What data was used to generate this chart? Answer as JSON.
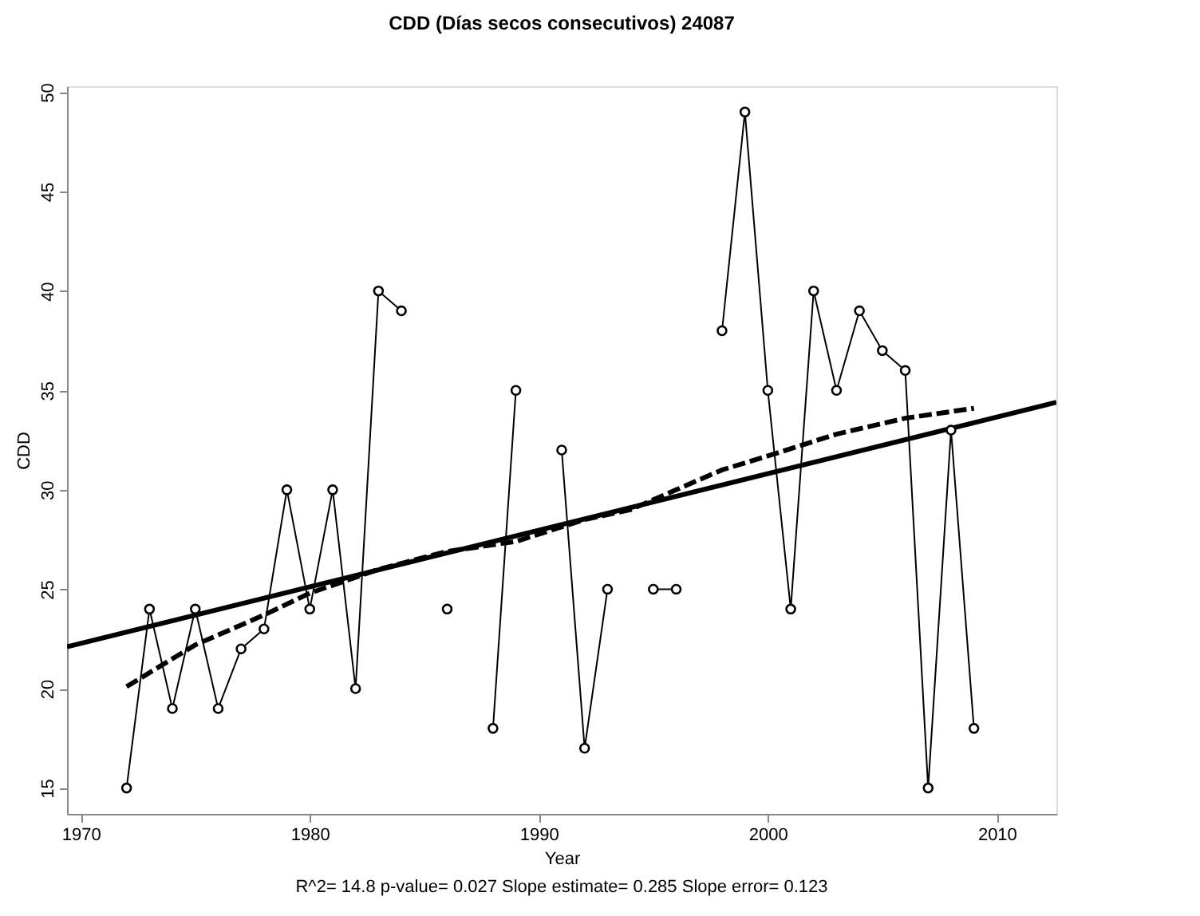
{
  "chart_data": {
    "type": "line",
    "title": "CDD (Días secos consecutivos)   24087",
    "xlabel": "Year",
    "ylabel": "CDD",
    "x": [
      1972,
      1973,
      1974,
      1975,
      1976,
      1977,
      1978,
      1979,
      1980,
      1981,
      1982,
      1983,
      1984,
      1985,
      1986,
      1987,
      1988,
      1989,
      1990,
      1991,
      1992,
      1993,
      1994,
      1995,
      1996,
      1997,
      1998,
      1999,
      2000,
      2001,
      2002,
      2003,
      2004,
      2005,
      2006,
      2007,
      2008,
      2009
    ],
    "series": [
      {
        "color": "#000000",
        "marker": "circle",
        "line_style": "solid",
        "values": [
          15,
          24,
          19,
          24,
          19,
          22,
          23,
          30,
          24,
          30,
          20,
          40,
          39,
          null,
          24,
          null,
          18,
          35,
          null,
          32,
          17,
          25,
          null,
          25,
          25,
          null,
          38,
          49,
          35,
          24,
          40,
          35,
          39,
          37,
          36,
          15,
          33,
          18
        ]
      },
      {
        "color": "#000000",
        "marker": "none",
        "line_style": "solid",
        "x": [
          1969.4,
          2012.6
        ],
        "values": [
          22.1,
          34.4
        ]
      },
      {
        "color": "#000000",
        "marker": "none",
        "line_style": "dashed",
        "x": [
          1972,
          1975,
          1978,
          1980,
          1983,
          1986,
          1989,
          1992,
          1994,
          1996,
          1998,
          2000,
          2003,
          2006,
          2009
        ],
        "values": [
          20.1,
          22.2,
          23.7,
          24.8,
          26.0,
          26.9,
          27.4,
          28.5,
          29.0,
          30.0,
          31.0,
          31.7,
          32.8,
          33.6,
          34.1
        ]
      }
    ],
    "xlim": [
      1969.4,
      2012.6
    ],
    "xticks": [
      1970,
      1980,
      1990,
      2000,
      2010
    ],
    "ylim": [
      13.7,
      50.3
    ],
    "yticks": [
      15,
      20,
      25,
      30,
      35,
      40,
      45,
      50
    ],
    "grid": false,
    "annotations": [
      "R^2= 14.8  p-value= 0.027  Slope estimate= 0.285  Slope error= 0.123"
    ]
  }
}
